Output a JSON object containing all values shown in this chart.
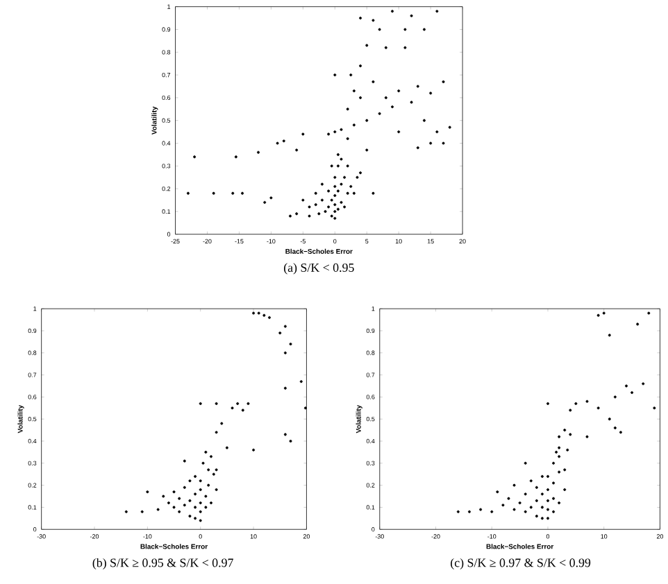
{
  "chart_data": [
    {
      "type": "scatter",
      "title": "(a)  S/K < 0.95",
      "xlabel": "Black−Scholes Error",
      "ylabel": "Volatility",
      "xlim": [
        -25,
        20
      ],
      "ylim": [
        0,
        1
      ],
      "xticks": [
        -25,
        -20,
        -15,
        -10,
        -5,
        0,
        5,
        10,
        15,
        20
      ],
      "yticks": [
        0,
        0.1,
        0.2,
        0.3,
        0.4,
        0.5,
        0.6,
        0.7,
        0.8,
        0.9,
        1
      ],
      "series": [
        {
          "color": "#000000",
          "x": [
            -23,
            -22,
            -19,
            -16,
            -15.5,
            -14.5,
            -12,
            -11,
            -10,
            -9,
            -8,
            -7,
            -6,
            -6,
            -5,
            -5,
            -4,
            -4,
            -3,
            -3,
            -2.5,
            -2,
            -2,
            -1.5,
            -1,
            -1,
            -0.5,
            -0.5,
            0,
            0,
            0,
            0,
            0,
            0,
            0.5,
            0.5,
            0.5,
            1,
            1,
            1,
            1.5,
            1.5,
            2,
            2,
            2.5,
            3,
            3.5,
            4,
            5,
            6,
            0,
            1,
            2,
            2,
            2.5,
            3,
            3,
            4,
            4,
            5,
            5,
            6,
            6,
            7,
            7,
            8,
            8,
            9,
            9,
            10,
            10,
            11,
            11,
            12,
            12,
            13,
            13,
            14,
            14,
            15,
            15,
            16,
            16,
            17,
            17,
            18,
            0,
            -1,
            4,
            -0.5,
            0.5
          ],
          "values": [
            0.18,
            0.34,
            0.18,
            0.18,
            0.34,
            0.18,
            0.36,
            0.14,
            0.16,
            0.4,
            0.41,
            0.08,
            0.09,
            0.37,
            0.15,
            0.44,
            0.12,
            0.08,
            0.18,
            0.13,
            0.09,
            0.15,
            0.22,
            0.1,
            0.12,
            0.19,
            0.08,
            0.15,
            0.07,
            0.1,
            0.13,
            0.17,
            0.21,
            0.25,
            0.11,
            0.19,
            0.3,
            0.14,
            0.22,
            0.33,
            0.12,
            0.25,
            0.18,
            0.3,
            0.21,
            0.18,
            0.25,
            0.27,
            0.37,
            0.18,
            0.7,
            0.46,
            0.42,
            0.55,
            0.7,
            0.63,
            0.48,
            0.74,
            0.6,
            0.5,
            0.83,
            0.67,
            0.94,
            0.53,
            0.9,
            0.6,
            0.82,
            0.56,
            0.98,
            0.63,
            0.45,
            0.9,
            0.82,
            0.58,
            0.96,
            0.38,
            0.65,
            0.5,
            0.9,
            0.62,
            0.4,
            0.98,
            0.45,
            0.67,
            0.4,
            0.47,
            0.45,
            0.44,
            0.95,
            0.3,
            0.35
          ]
        }
      ]
    },
    {
      "type": "scatter",
      "title": "(b)  S/K ≥ 0.95 & S/K < 0.97",
      "xlabel": "Black−Scholes Error",
      "ylabel": "Volatility",
      "xlim": [
        -30,
        20
      ],
      "ylim": [
        0,
        1
      ],
      "xticks": [
        -30,
        -20,
        -10,
        0,
        10,
        20
      ],
      "yticks": [
        0,
        0.1,
        0.2,
        0.3,
        0.4,
        0.5,
        0.6,
        0.7,
        0.8,
        0.9,
        1
      ],
      "series": [
        {
          "color": "#000000",
          "x": [
            -14,
            -11,
            -10,
            -8,
            -7,
            -6,
            -5,
            -5,
            -4,
            -4,
            -3,
            -3,
            -2,
            -2,
            -2,
            -1,
            -1,
            -1,
            -1,
            0,
            0,
            0,
            0,
            0,
            0.5,
            1,
            1,
            1,
            1.5,
            1.5,
            2,
            2,
            2.5,
            3,
            3,
            -3,
            0,
            3,
            3,
            4,
            5,
            6,
            7,
            8,
            9,
            10,
            10,
            11,
            12,
            13,
            15,
            16,
            16,
            16,
            16,
            17,
            17,
            19,
            19.8
          ],
          "values": [
            0.08,
            0.08,
            0.17,
            0.09,
            0.15,
            0.12,
            0.1,
            0.17,
            0.08,
            0.14,
            0.11,
            0.19,
            0.06,
            0.13,
            0.22,
            0.05,
            0.1,
            0.16,
            0.24,
            0.04,
            0.08,
            0.12,
            0.18,
            0.22,
            0.3,
            0.1,
            0.15,
            0.35,
            0.2,
            0.27,
            0.12,
            0.33,
            0.25,
            0.18,
            0.27,
            0.31,
            0.57,
            0.57,
            0.44,
            0.48,
            0.37,
            0.55,
            0.57,
            0.54,
            0.57,
            0.36,
            0.98,
            0.98,
            0.97,
            0.96,
            0.89,
            0.92,
            0.8,
            0.64,
            0.43,
            0.84,
            0.4,
            0.67,
            0.55
          ]
        }
      ]
    },
    {
      "type": "scatter",
      "title": "(c)  S/K ≥ 0.97 & S/K < 0.99",
      "xlabel": "Black−Scholes Error",
      "ylabel": "Volatility",
      "xlim": [
        -30,
        20
      ],
      "ylim": [
        0,
        1
      ],
      "xticks": [
        -30,
        -20,
        -10,
        0,
        10,
        20
      ],
      "yticks": [
        0,
        0.1,
        0.2,
        0.3,
        0.4,
        0.5,
        0.6,
        0.7,
        0.8,
        0.9,
        1
      ],
      "series": [
        {
          "color": "#000000",
          "x": [
            -16,
            -14,
            -12,
            -10,
            -9,
            -8,
            -7,
            -6,
            -6,
            -5,
            -4,
            -4,
            -3,
            -3,
            -2,
            -2,
            -2,
            -1,
            -1,
            -1,
            -1,
            0,
            0,
            0,
            0,
            0,
            1,
            1,
            1,
            1,
            1.5,
            2,
            2,
            2,
            3,
            3,
            -4,
            0,
            2,
            2,
            3,
            3.5,
            4,
            4,
            5,
            7,
            7,
            9,
            9,
            10,
            11,
            11,
            12,
            12,
            13,
            14,
            15,
            16,
            17,
            19,
            18
          ],
          "values": [
            0.08,
            0.08,
            0.09,
            0.08,
            0.17,
            0.11,
            0.14,
            0.09,
            0.2,
            0.12,
            0.08,
            0.16,
            0.1,
            0.22,
            0.06,
            0.13,
            0.19,
            0.05,
            0.1,
            0.16,
            0.24,
            0.05,
            0.09,
            0.13,
            0.18,
            0.24,
            0.08,
            0.14,
            0.21,
            0.3,
            0.35,
            0.12,
            0.26,
            0.33,
            0.18,
            0.27,
            0.3,
            0.57,
            0.42,
            0.37,
            0.45,
            0.36,
            0.54,
            0.43,
            0.57,
            0.58,
            0.42,
            0.55,
            0.97,
            0.98,
            0.5,
            0.88,
            0.46,
            0.6,
            0.44,
            0.65,
            0.62,
            0.93,
            0.66,
            0.55,
            0.98
          ]
        }
      ]
    }
  ]
}
